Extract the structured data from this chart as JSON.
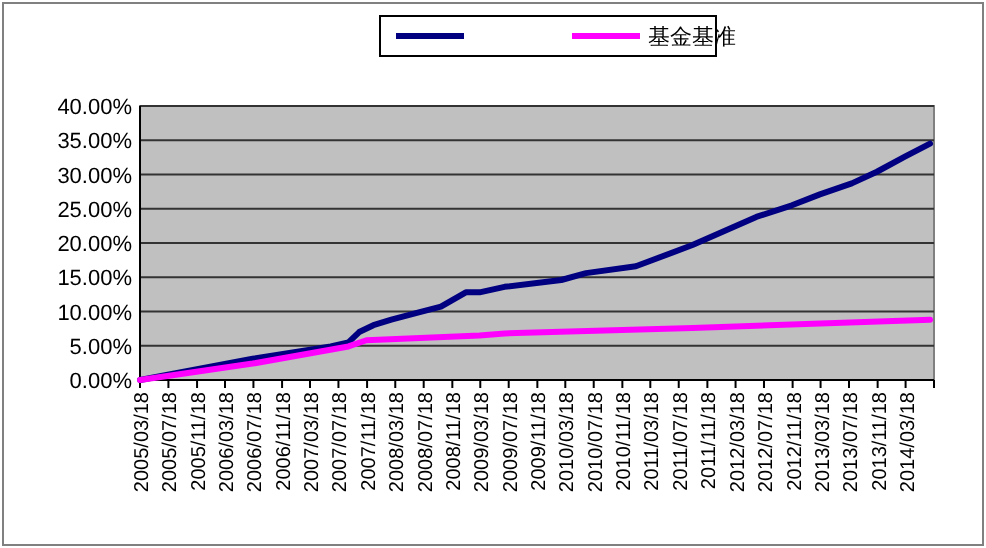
{
  "chart_data": {
    "type": "line",
    "legend": "top",
    "grid": "y",
    "marker": "none",
    "line_style": "solid",
    "xlim": [
      "2005-03-18",
      "2014-07-18"
    ],
    "xticks": [
      {
        "value": "2005-03-18",
        "label": "2005/03/18"
      },
      {
        "value": "2005-07-18",
        "label": "2005/07/18"
      },
      {
        "value": "2005-11-18",
        "label": "2005/11/18"
      },
      {
        "value": "2006-03-18",
        "label": "2006/03/18"
      },
      {
        "value": "2006-07-18",
        "label": "2006/07/18"
      },
      {
        "value": "2006-11-18",
        "label": "2006/11/18"
      },
      {
        "value": "2007-03-18",
        "label": "2007/03/18"
      },
      {
        "value": "2007-07-18",
        "label": "2007/07/18"
      },
      {
        "value": "2007-11-18",
        "label": "2007/11/18"
      },
      {
        "value": "2008-03-18",
        "label": "2008/03/18"
      },
      {
        "value": "2008-07-18",
        "label": "2008/07/18"
      },
      {
        "value": "2008-11-18",
        "label": "2008/11/18"
      },
      {
        "value": "2009-03-18",
        "label": "2009/03/18"
      },
      {
        "value": "2009-07-18",
        "label": "2009/07/18"
      },
      {
        "value": "2009-11-18",
        "label": "2009/11/18"
      },
      {
        "value": "2010-03-18",
        "label": "2010/03/18"
      },
      {
        "value": "2010-07-18",
        "label": "2010/07/18"
      },
      {
        "value": "2010-11-18",
        "label": "2010/11/18"
      },
      {
        "value": "2011-03-18",
        "label": "2011/03/18"
      },
      {
        "value": "2011-07-18",
        "label": "2011/07/18"
      },
      {
        "value": "2011-11-18",
        "label": "2011/11/18"
      },
      {
        "value": "2012-03-18",
        "label": "2012/03/18"
      },
      {
        "value": "2012-07-18",
        "label": "2012/07/18"
      },
      {
        "value": "2012-11-18",
        "label": "2012/11/18"
      },
      {
        "value": "2013-03-18",
        "label": "2013/03/18"
      },
      {
        "value": "2013-07-18",
        "label": "2013/07/18"
      },
      {
        "value": "2013-11-18",
        "label": "2013/11/18"
      },
      {
        "value": "2014-03-18",
        "label": "2014/03/18"
      },
      {
        "value": "2014-07-18",
        "label": null
      }
    ],
    "ylim": [
      0,
      40
    ],
    "yticks": [
      {
        "value": 0,
        "label": "0.00%"
      },
      {
        "value": 5,
        "label": "5.00%"
      },
      {
        "value": 10,
        "label": "10.00%"
      },
      {
        "value": 15,
        "label": "15.00%"
      },
      {
        "value": 20,
        "label": "20.00%"
      },
      {
        "value": 25,
        "label": "25.00%"
      },
      {
        "value": 30,
        "label": "30.00%"
      },
      {
        "value": 35,
        "label": "35.00%"
      },
      {
        "value": 40,
        "label": "40.00%"
      }
    ],
    "series": [
      {
        "color": "#000080",
        "x": [
          "2005-03-18",
          "2006-07-15",
          "2007-06-15",
          "2007-08-30",
          "2007-10-15",
          "2007-12-15",
          "2008-03-01",
          "2008-07-01",
          "2008-09-30",
          "2009-01-15",
          "2009-03-15",
          "2009-06-30",
          "2010-03-01",
          "2010-06-15",
          "2011-01-15",
          "2011-09-15",
          "2012-06-15",
          "2012-11-15",
          "2013-03-15",
          "2013-07-30",
          "2013-11-15",
          "2014-03-15",
          "2014-07-01"
        ],
        "values": [
          0,
          3.1,
          4.9,
          5.5,
          7.0,
          8.0,
          8.8,
          9.9,
          10.7,
          12.8,
          12.8,
          13.6,
          14.6,
          15.6,
          16.6,
          19.7,
          23.8,
          25.5,
          27.1,
          28.7,
          30.4,
          32.6,
          34.5
        ]
      },
      {
        "name": "基金基准",
        "color": "#ff00ff",
        "x": [
          "2005-03-18",
          "2006-07-15",
          "2007-08-30",
          "2007-11-15",
          "2009-03-15",
          "2009-06-30",
          "2011-09-15",
          "2014-07-01"
        ],
        "values": [
          0,
          2.4,
          4.9,
          5.8,
          6.5,
          6.8,
          7.6,
          8.8
        ]
      }
    ]
  }
}
